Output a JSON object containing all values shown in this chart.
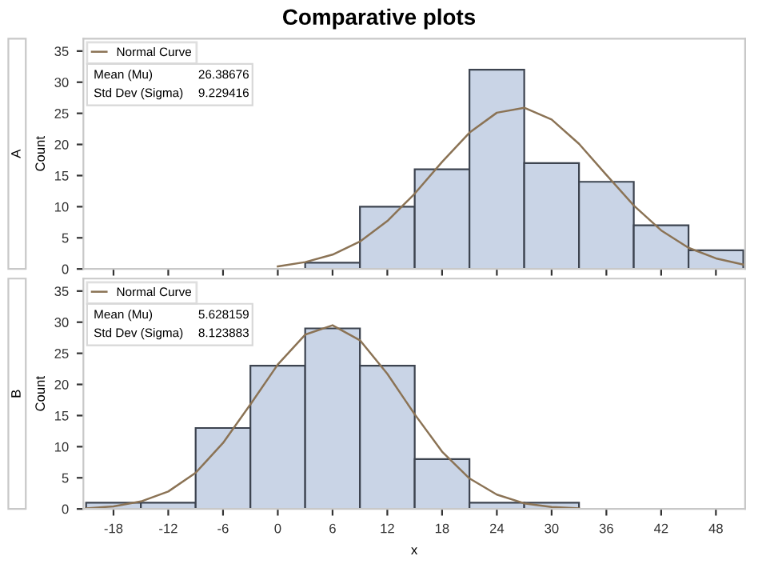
{
  "chart_data": [
    {
      "type": "histogram",
      "title": "Comparative plots",
      "subtitle": "A",
      "ylabel": "Count",
      "color": "#c9d4e6",
      "bins": [
        3,
        9,
        15,
        21,
        27,
        33,
        39,
        45,
        51
      ],
      "values": [
        1,
        10,
        16,
        32,
        17,
        14,
        7,
        3
      ],
      "series": [
        {
          "name": "Normal Curve",
          "type": "line",
          "color": "#8b7355",
          "x": [
            0,
            3,
            6,
            9,
            12,
            15,
            18,
            21,
            24,
            27,
            30,
            33,
            36,
            39,
            42,
            45,
            48,
            51
          ],
          "values": [
            0.4,
            1.1,
            2.3,
            4.4,
            7.7,
            12.1,
            17.2,
            21.9,
            25.1,
            25.9,
            24.0,
            20.1,
            15.1,
            10.2,
            6.2,
            3.4,
            1.7,
            0.7
          ]
        }
      ],
      "annotations": [
        "Mean (Mu)",
        "26.38676",
        "Std Dev (Sigma)",
        "9.229416"
      ],
      "xlim": [
        -21.3,
        51.2
      ],
      "ylim": [
        0,
        37
      ],
      "xticks": [
        -18,
        -12,
        -6,
        0,
        6,
        12,
        18,
        24,
        30,
        36,
        42,
        48
      ],
      "yticks": [
        0,
        5,
        10,
        15,
        20,
        25,
        30,
        35
      ],
      "tick_labels": "y",
      "legend": "top left",
      "grid": false
    },
    {
      "type": "histogram",
      "subtitle": "B",
      "ylabel": "Count",
      "xlabel": "x",
      "color": "#c9d4e6",
      "bins": [
        -21,
        -15,
        -9,
        -3,
        3,
        9,
        15,
        21,
        27,
        33
      ],
      "values": [
        1,
        1,
        13,
        23,
        29,
        23,
        8,
        1,
        1
      ],
      "series": [
        {
          "name": "Normal Curve",
          "type": "line",
          "color": "#8b7355",
          "x": [
            -21,
            -18,
            -15,
            -12,
            -9,
            -6,
            -3,
            0,
            3,
            6,
            9,
            12,
            15,
            18,
            21,
            24,
            27,
            30,
            33
          ],
          "values": [
            0.1,
            0.4,
            1.2,
            2.8,
            5.8,
            10.6,
            16.8,
            23.2,
            28.0,
            29.5,
            27.1,
            21.7,
            15.2,
            9.2,
            4.9,
            2.3,
            0.9,
            0.3,
            0.1
          ]
        }
      ],
      "annotations": [
        "Mean (Mu)",
        "5.628159",
        "Std Dev (Sigma)",
        "8.123883"
      ],
      "xlim": [
        -21.3,
        51.2
      ],
      "ylim": [
        0,
        37
      ],
      "xticks": [
        -18,
        -12,
        -6,
        0,
        6,
        12,
        18,
        24,
        30,
        36,
        42,
        48
      ],
      "yticks": [
        0,
        5,
        10,
        15,
        20,
        25,
        30,
        35
      ],
      "legend": "top left",
      "grid": false
    }
  ]
}
